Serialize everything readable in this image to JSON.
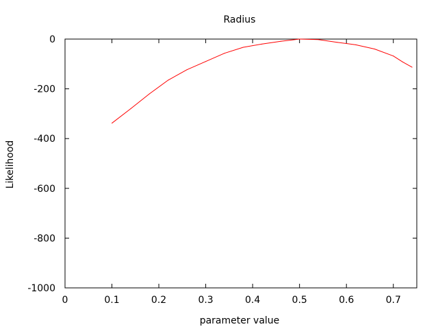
{
  "chart_data": {
    "type": "line",
    "title": "Radius",
    "xlabel": "parameter value",
    "ylabel": "Likelihood",
    "xlim": [
      0,
      0.75
    ],
    "ylim": [
      -1000,
      0
    ],
    "xticks": [
      0,
      0.1,
      0.2,
      0.3,
      0.4,
      0.5,
      0.6,
      0.7
    ],
    "xtick_labels": [
      "0",
      "0.1",
      "0.2",
      "0.3",
      "0.4",
      "0.5",
      "0.6",
      "0.7"
    ],
    "yticks": [
      0,
      -200,
      -400,
      -600,
      -800,
      -1000
    ],
    "ytick_labels": [
      "0",
      "-200",
      "-400",
      "-600",
      "-800",
      "-1000"
    ],
    "grid": false,
    "series": [
      {
        "color": "#ff0000",
        "x": [
          0.1,
          0.14,
          0.18,
          0.22,
          0.26,
          0.3,
          0.34,
          0.38,
          0.42,
          0.46,
          0.5,
          0.54,
          0.58,
          0.62,
          0.66,
          0.7,
          0.72,
          0.74
        ],
        "y": [
          -338,
          -280,
          -220,
          -165,
          -123,
          -90,
          -57,
          -33,
          -20,
          -9,
          0,
          -2,
          -13,
          -23,
          -40,
          -68,
          -92,
          -113
        ]
      }
    ]
  }
}
